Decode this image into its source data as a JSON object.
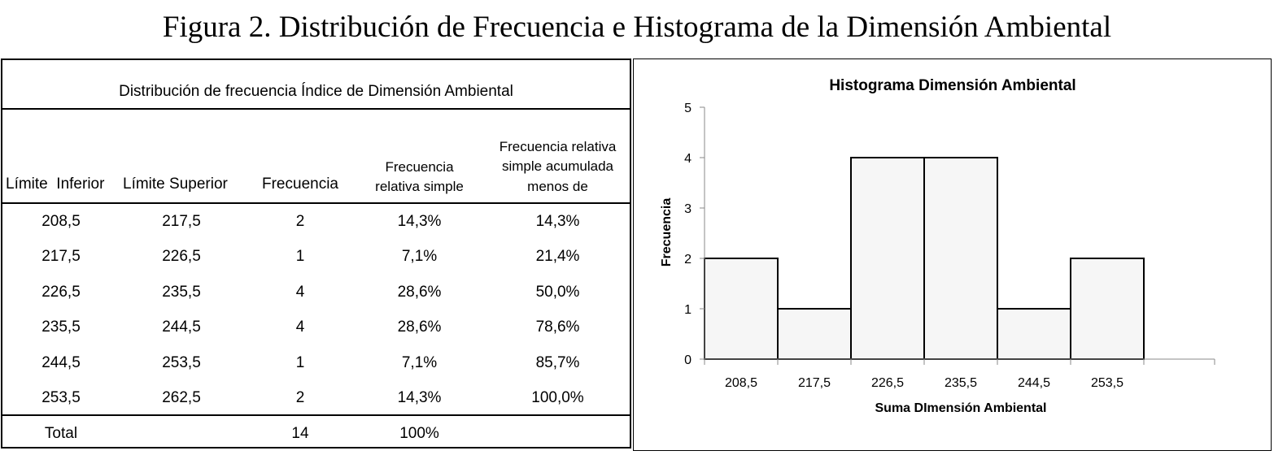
{
  "figure_title": "Figura 2. Distribución de Frecuencia e Histograma de la Dimensión Ambiental",
  "table": {
    "caption": "Distribución de frecuencia Índice de Dimensión Ambiental",
    "headers": {
      "lower": "Límite  Inferior",
      "upper": "Límite Superior",
      "freq": "Frecuencia",
      "rel_line1": "Frecuencia",
      "rel_line2": "relativa simple",
      "cum_line1": "Frecuencia relativa",
      "cum_line2": "simple acumulada",
      "cum_line3": "menos de"
    },
    "rows": [
      {
        "lower": "208,5",
        "upper": "217,5",
        "freq": "2",
        "rel": "14,3%",
        "cum": "14,3%"
      },
      {
        "lower": "217,5",
        "upper": "226,5",
        "freq": "1",
        "rel": "7,1%",
        "cum": "21,4%"
      },
      {
        "lower": "226,5",
        "upper": "235,5",
        "freq": "4",
        "rel": "28,6%",
        "cum": "50,0%"
      },
      {
        "lower": "235,5",
        "upper": "244,5",
        "freq": "4",
        "rel": "28,6%",
        "cum": "78,6%"
      },
      {
        "lower": "244,5",
        "upper": "253,5",
        "freq": "1",
        "rel": "7,1%",
        "cum": "85,7%"
      },
      {
        "lower": "253,5",
        "upper": "262,5",
        "freq": "2",
        "rel": "14,3%",
        "cum": "100,0%"
      }
    ],
    "total": {
      "label": "Total",
      "freq": "14",
      "rel": "100%"
    }
  },
  "chart_data": {
    "type": "bar",
    "title": "Histograma Dimensión Ambiental",
    "xlabel": "Suma DImensión Ambiental",
    "ylabel": "Frecuencia",
    "categories": [
      "208,5",
      "217,5",
      "226,5",
      "235,5",
      "244,5",
      "253,5"
    ],
    "values": [
      2,
      1,
      4,
      4,
      1,
      2
    ],
    "ylim": [
      0,
      5
    ],
    "yticks": [
      0,
      1,
      2,
      3,
      4,
      5
    ],
    "grid": false,
    "legend": "none",
    "bar_fill": "#f6f6f6",
    "bar_stroke": "#000000"
  }
}
